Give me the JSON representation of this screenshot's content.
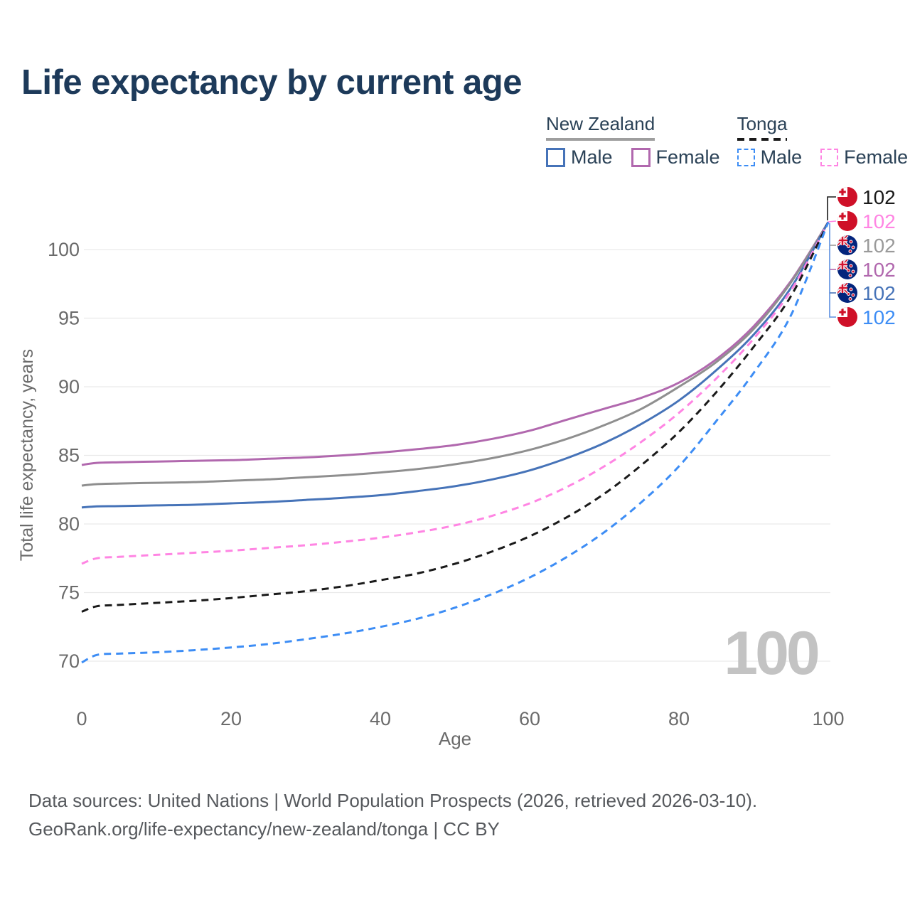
{
  "header": {
    "title": "Life expectancy by current age"
  },
  "legend": {
    "groups": [
      {
        "id": "new-zealand",
        "label": "New Zealand",
        "line_style": "solid",
        "line_color": "#9e9e9e",
        "items": [
          {
            "label": "Male",
            "color": "#4673b8",
            "box_style": "solid"
          },
          {
            "label": "Female",
            "color": "#b168ae",
            "box_style": "solid"
          }
        ]
      },
      {
        "id": "tonga",
        "label": "Tonga",
        "line_style": "dashed",
        "line_color": "#1a1a1a",
        "items": [
          {
            "label": "Male",
            "color": "#3d8df5",
            "box_style": "dashed"
          },
          {
            "label": "Female",
            "color": "#ff85e3",
            "box_style": "dashed"
          }
        ]
      }
    ]
  },
  "chart_data": {
    "type": "line",
    "title": "Life expectancy by current age",
    "xlabel": "Age",
    "ylabel": "Total life expectancy, years",
    "x_ticks": [
      0,
      20,
      40,
      60,
      80,
      100
    ],
    "y_ticks": [
      70,
      75,
      80,
      85,
      90,
      95,
      100
    ],
    "xlim": [
      0,
      100
    ],
    "ylim": [
      68.5,
      103
    ],
    "grid": "horizontal",
    "legend_position": "top-right",
    "watermark": "100",
    "x": [
      0,
      2,
      5,
      10,
      15,
      20,
      25,
      30,
      35,
      40,
      45,
      50,
      55,
      60,
      65,
      70,
      75,
      80,
      85,
      90,
      95,
      100
    ],
    "series": [
      {
        "name": "New Zealand Female",
        "country": "New Zealand",
        "sex": "Female",
        "color": "#b168ae",
        "dash": false,
        "values": [
          84.3,
          84.45,
          84.5,
          84.55,
          84.6,
          84.65,
          84.75,
          84.85,
          85.0,
          85.2,
          85.45,
          85.75,
          86.2,
          86.8,
          87.6,
          88.4,
          89.2,
          90.3,
          92.0,
          94.4,
          97.7,
          102
        ]
      },
      {
        "name": "New Zealand",
        "country": "New Zealand",
        "sex": "Both",
        "color": "#8f8f8f",
        "dash": false,
        "values": [
          82.8,
          82.9,
          82.95,
          83.0,
          83.05,
          83.15,
          83.25,
          83.4,
          83.55,
          83.75,
          84.0,
          84.35,
          84.8,
          85.4,
          86.2,
          87.2,
          88.4,
          90.0,
          91.8,
          94.2,
          97.6,
          102
        ]
      },
      {
        "name": "New Zealand Male",
        "country": "New Zealand",
        "sex": "Male",
        "color": "#4673b8",
        "dash": false,
        "values": [
          81.2,
          81.28,
          81.3,
          81.35,
          81.4,
          81.5,
          81.6,
          81.75,
          81.9,
          82.1,
          82.4,
          82.75,
          83.25,
          83.9,
          84.8,
          85.9,
          87.3,
          89.0,
          91.2,
          93.8,
          97.2,
          102
        ]
      },
      {
        "name": "Tonga Female",
        "country": "Tonga",
        "sex": "Female",
        "color": "#ff85e3",
        "dash": true,
        "values": [
          77.1,
          77.5,
          77.6,
          77.75,
          77.9,
          78.05,
          78.25,
          78.45,
          78.7,
          79.0,
          79.4,
          79.9,
          80.6,
          81.5,
          82.7,
          84.2,
          86.0,
          88.1,
          90.6,
          93.5,
          97.0,
          102
        ]
      },
      {
        "name": "Tonga",
        "country": "Tonga",
        "sex": "Both",
        "color": "#1a1a1a",
        "dash": true,
        "values": [
          73.6,
          74.0,
          74.1,
          74.25,
          74.4,
          74.6,
          74.85,
          75.1,
          75.45,
          75.9,
          76.4,
          77.1,
          78.0,
          79.1,
          80.5,
          82.2,
          84.3,
          86.7,
          89.6,
          92.9,
          96.6,
          102
        ]
      },
      {
        "name": "Tonga Male",
        "country": "Tonga",
        "sex": "Male",
        "color": "#3d8df5",
        "dash": true,
        "values": [
          69.9,
          70.45,
          70.55,
          70.65,
          70.8,
          71.0,
          71.25,
          71.6,
          72.0,
          72.5,
          73.1,
          73.9,
          74.9,
          76.1,
          77.6,
          79.4,
          81.6,
          84.2,
          87.5,
          91.0,
          95.2,
          102
        ]
      }
    ],
    "end_labels": [
      {
        "text": "102",
        "flag": "tonga",
        "color": "#1a1a1a",
        "series": "Tonga"
      },
      {
        "text": "102",
        "flag": "tonga",
        "color": "#ff85e3",
        "series": "Tonga Female"
      },
      {
        "text": "102",
        "flag": "nz",
        "color": "#9a9a9a",
        "series": "New Zealand"
      },
      {
        "text": "102",
        "flag": "nz",
        "color": "#b168ae",
        "series": "New Zealand Female"
      },
      {
        "text": "102",
        "flag": "nz",
        "color": "#4673b8",
        "series": "New Zealand Male"
      },
      {
        "text": "102",
        "flag": "tonga",
        "color": "#3d8df5",
        "series": "Tonga Male"
      }
    ]
  },
  "footer": {
    "line1": "Data sources: United Nations | World Population Prospects (2026, retrieved 2026-03-10).",
    "line2": "GeoRank.org/life-expectancy/new-zealand/tonga | CC BY"
  }
}
